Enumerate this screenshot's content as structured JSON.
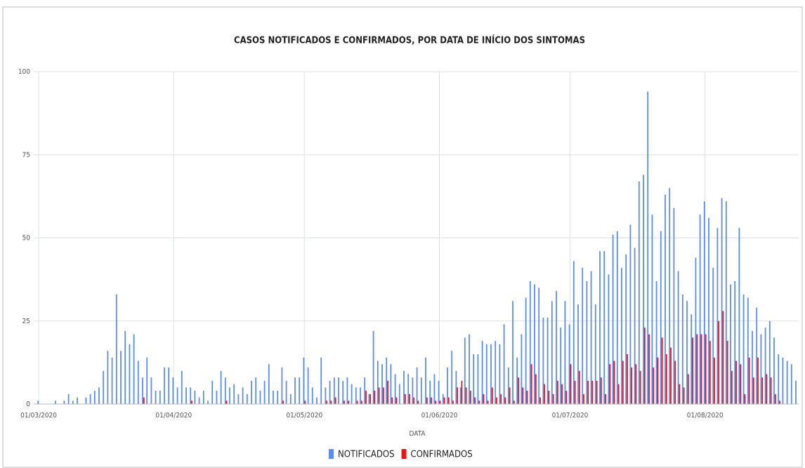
{
  "chart_data": {
    "type": "bar",
    "title": "CASOS NOTIFICADOS E CONFIRMADOS, POR DATA DE INÍCIO DOS SINTOMAS",
    "x_label": "DATA",
    "categories": [
      "01/03/2020",
      null,
      null,
      null,
      null,
      null,
      null,
      null,
      null,
      null,
      null,
      null,
      null,
      null,
      null,
      null,
      null,
      null,
      null,
      null,
      null,
      null,
      null,
      null,
      null,
      null,
      null,
      null,
      null,
      null,
      null,
      "01/04/2020",
      null,
      null,
      null,
      null,
      null,
      null,
      null,
      null,
      null,
      null,
      null,
      null,
      null,
      null,
      null,
      null,
      null,
      null,
      null,
      null,
      null,
      null,
      null,
      null,
      null,
      null,
      null,
      null,
      null,
      "01/05/2020",
      null,
      null,
      null,
      null,
      null,
      null,
      null,
      null,
      null,
      null,
      null,
      null,
      null,
      null,
      null,
      null,
      null,
      null,
      null,
      null,
      null,
      null,
      null,
      null,
      null,
      null,
      null,
      null,
      null,
      null,
      "01/06/2020",
      null,
      null,
      null,
      null,
      null,
      null,
      null,
      null,
      null,
      null,
      null,
      null,
      null,
      null,
      null,
      null,
      null,
      null,
      null,
      null,
      null,
      null,
      null,
      null,
      null,
      null,
      null,
      null,
      null,
      "01/07/2020",
      null,
      null,
      null,
      null,
      null,
      null,
      null,
      null,
      null,
      null,
      null,
      null,
      null,
      null,
      null,
      null,
      null,
      null,
      null,
      null,
      null,
      null,
      null,
      null,
      null,
      null,
      null,
      null,
      null,
      null,
      "01/08/2020",
      null,
      null,
      null,
      null,
      null,
      null,
      null,
      null,
      null,
      null,
      null,
      null,
      null,
      null,
      null,
      null,
      null,
      null,
      null,
      null,
      null
    ],
    "series": [
      {
        "name": "NOTIFICADOS",
        "color": "#5b8def",
        "values": [
          1,
          0,
          0,
          0,
          1,
          0,
          1,
          3,
          1,
          2,
          0,
          2,
          3,
          4,
          5,
          10,
          16,
          14,
          33,
          16,
          22,
          18,
          21,
          13,
          8,
          14,
          8,
          4,
          4,
          11,
          11,
          8,
          5,
          10,
          5,
          5,
          4,
          2,
          4,
          1,
          7,
          4,
          10,
          8,
          5,
          6,
          3,
          5,
          3,
          7,
          8,
          4,
          7,
          12,
          4,
          4,
          11,
          7,
          3,
          8,
          8,
          14,
          11,
          5,
          2,
          14,
          5,
          7,
          8,
          8,
          7,
          8,
          6,
          5,
          5,
          8,
          3,
          22,
          13,
          12,
          14,
          12,
          9,
          6,
          10,
          9,
          8,
          11,
          8,
          14,
          7,
          9,
          7,
          3,
          11,
          16,
          10,
          5,
          20,
          21,
          15,
          15,
          19,
          18,
          18,
          19,
          18,
          24,
          11,
          31,
          14,
          21,
          32,
          37,
          36,
          35,
          26,
          26,
          31,
          34,
          23,
          31,
          24,
          43,
          30,
          41,
          37,
          40,
          30,
          46,
          46,
          39,
          51,
          52,
          41,
          45,
          54,
          47,
          67,
          69,
          94,
          57,
          37,
          52,
          63,
          65,
          59,
          40,
          33,
          31,
          27,
          44,
          57,
          61,
          56,
          41,
          53,
          62,
          61,
          36,
          37,
          53,
          33,
          32,
          22,
          29,
          21,
          23,
          25,
          20,
          15,
          14,
          13,
          12,
          7
        ]
      },
      {
        "name": "CONFIRMADOS",
        "color": "#e8161b",
        "values": [
          0,
          0,
          0,
          0,
          0,
          0,
          0,
          0,
          0,
          0,
          0,
          0,
          0,
          0,
          0,
          0,
          0,
          0,
          0,
          0,
          0,
          0,
          0,
          0,
          2,
          0,
          0,
          0,
          0,
          0,
          0,
          0,
          0,
          0,
          0,
          1,
          0,
          0,
          0,
          0,
          0,
          0,
          0,
          1,
          0,
          0,
          0,
          0,
          0,
          0,
          0,
          0,
          0,
          0,
          0,
          0,
          1,
          0,
          0,
          0,
          0,
          1,
          0,
          0,
          0,
          0,
          1,
          1,
          2,
          0,
          1,
          1,
          0,
          1,
          1,
          4,
          3,
          4,
          5,
          5,
          7,
          2,
          2,
          0,
          3,
          3,
          2,
          1,
          0,
          2,
          2,
          1,
          1,
          2,
          2,
          1,
          5,
          7,
          5,
          4,
          2,
          1,
          3,
          1,
          5,
          2,
          3,
          2,
          5,
          1,
          8,
          5,
          4,
          12,
          9,
          2,
          6,
          4,
          3,
          7,
          6,
          4,
          12,
          7,
          10,
          3,
          7,
          7,
          7,
          8,
          3,
          12,
          13,
          6,
          13,
          15,
          11,
          12,
          10,
          23,
          21,
          11,
          14,
          20,
          15,
          17,
          13,
          6,
          5,
          9,
          20,
          21,
          21,
          21,
          19,
          14,
          25,
          28,
          19,
          10,
          13,
          12,
          3,
          14,
          8,
          14,
          8,
          9,
          8,
          3,
          1,
          0,
          0,
          0,
          0
        ]
      }
    ],
    "ylim": [
      0,
      100
    ],
    "yticks": [
      0,
      25,
      50,
      75,
      100
    ],
    "grid": true,
    "legend": "bottom"
  }
}
